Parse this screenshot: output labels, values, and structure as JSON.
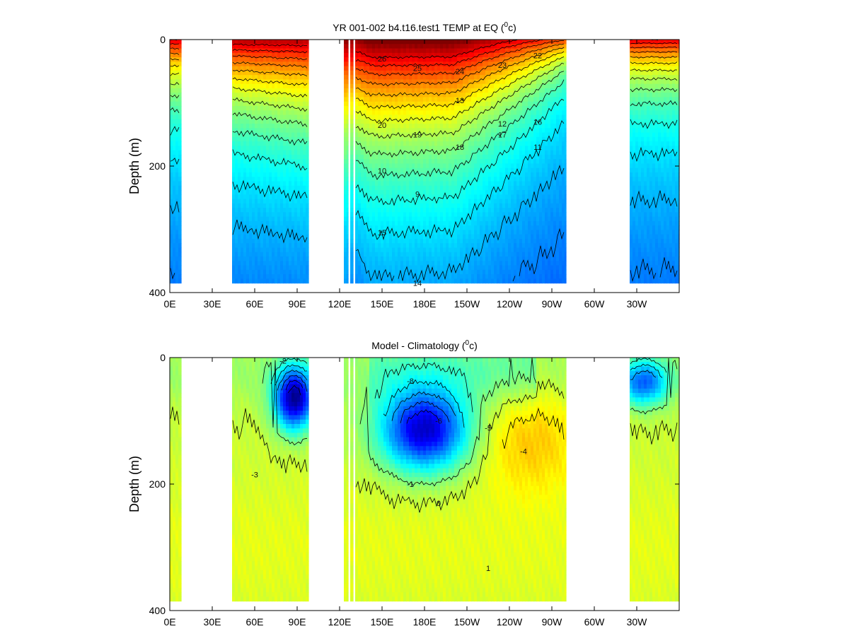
{
  "chart_data": [
    {
      "type": "heatmap",
      "title": "YR 001-002 b4.t16.test1 TEMP at EQ (",
      "title_sup": "0",
      "title_unit": "c)",
      "ylabel": "Depth (m)",
      "xlabel": "",
      "x_ticks": [
        "0E",
        "30E",
        "60E",
        "90E",
        "120E",
        "150E",
        "180E",
        "150W",
        "120W",
        "90W",
        "60W",
        "30W"
      ],
      "x_tick_lons": [
        0,
        30,
        60,
        90,
        120,
        150,
        180,
        210,
        240,
        270,
        300,
        330
      ],
      "xlim": [
        0,
        360
      ],
      "y_ticks": [
        "0",
        "200",
        "400"
      ],
      "ylim": [
        0,
        400
      ],
      "y_inverted": true,
      "data_max_depth": 385,
      "colormap": "jet",
      "color_range": [
        8,
        28
      ],
      "ocean_segments": [
        [
          0,
          8
        ],
        [
          44,
          98
        ],
        [
          123,
          126
        ],
        [
          127.5,
          129.5
        ],
        [
          131,
          280
        ],
        [
          325,
          360
        ]
      ],
      "contour_labels": [
        "26",
        "25",
        "24",
        "23",
        "22",
        "20",
        "19",
        "18",
        "17",
        "16",
        "15",
        "14",
        "13",
        "12",
        "11",
        "10",
        "9"
      ],
      "field": {
        "type": "equatorial_temperature",
        "surface_warm_pool": 28.5,
        "surface_east_pacific": 24,
        "surface_indian": 27,
        "surface_atlantic": 26,
        "deep_temperature": 10
      }
    },
    {
      "type": "heatmap",
      "title": "Model - Climatology (",
      "title_sup": "0",
      "title_unit": "c)",
      "ylabel": "Depth (m)",
      "xlabel": "",
      "x_ticks": [
        "0E",
        "30E",
        "60E",
        "90E",
        "120E",
        "150E",
        "180E",
        "150W",
        "120W",
        "90W",
        "60W",
        "30W"
      ],
      "x_tick_lons": [
        0,
        30,
        60,
        90,
        120,
        150,
        180,
        210,
        240,
        270,
        300,
        330
      ],
      "xlim": [
        0,
        360
      ],
      "y_ticks": [
        "0",
        "200",
        "400"
      ],
      "ylim": [
        0,
        400
      ],
      "y_inverted": true,
      "data_max_depth": 385,
      "colormap": "jet",
      "color_range": [
        -8,
        6
      ],
      "ocean_segments": [
        [
          0,
          8
        ],
        [
          44,
          98
        ],
        [
          123,
          126
        ],
        [
          127.5,
          129.5
        ],
        [
          131,
          280
        ],
        [
          325,
          360
        ]
      ],
      "contour_labels": [
        "-8",
        "-6",
        "-5",
        "-4",
        "-3",
        "-2",
        "-1",
        "0",
        "1"
      ],
      "field": {
        "type": "temperature_bias",
        "indian_min": -7.5,
        "pacific_min": -7,
        "atlantic_min": -4.5,
        "east_pacific_max": 1.5
      }
    }
  ]
}
